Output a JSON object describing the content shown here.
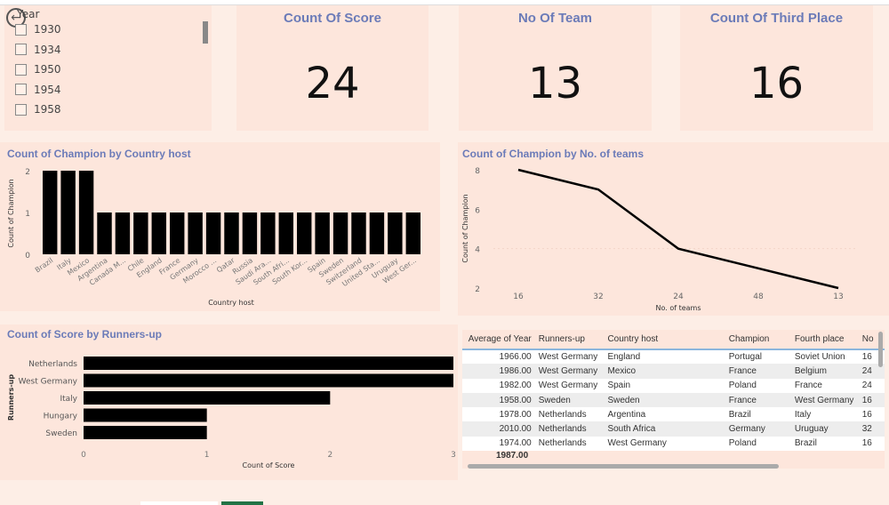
{
  "slicer": {
    "title": "Year",
    "items": [
      "1930",
      "1934",
      "1950",
      "1954",
      "1958"
    ]
  },
  "cards": [
    {
      "title": "Count Of Score",
      "value": "24"
    },
    {
      "title": "No Of Team",
      "value": "13"
    },
    {
      "title": "Count Of Third Place",
      "value": "16"
    }
  ],
  "chart_data": [
    {
      "type": "bar",
      "title": "Count of Champion by Country host",
      "xlabel": "Country host",
      "ylabel": "Count of Champion",
      "ylim": [
        0,
        2
      ],
      "yticks": [
        "0",
        "1",
        "2"
      ],
      "categories": [
        "Brazil",
        "Italy",
        "Mexico",
        "Argentina",
        "Canada M...",
        "Chile",
        "England",
        "France",
        "Germany",
        "Morocco ...",
        "Qatar",
        "Russia",
        "Saudi Ara...",
        "South Afri...",
        "South Kor...",
        "Spain",
        "Sweden",
        "Switzerland",
        "United Sta...",
        "Uruguay",
        "West Ger..."
      ],
      "values": [
        2,
        2,
        2,
        1,
        1,
        1,
        1,
        1,
        1,
        1,
        1,
        1,
        1,
        1,
        1,
        1,
        1,
        1,
        1,
        1,
        1
      ]
    },
    {
      "type": "line",
      "title": "Count of Champion by No. of teams",
      "xlabel": "No. of teams",
      "ylabel": "Count of Champion",
      "ylim": [
        2,
        8
      ],
      "yticks": [
        "2",
        "4",
        "6",
        "8"
      ],
      "categories": [
        "16",
        "32",
        "24",
        "48",
        "13"
      ],
      "values": [
        8,
        7,
        4,
        3,
        2
      ]
    },
    {
      "type": "bar",
      "orientation": "horizontal",
      "title": "Count of Score by Runners-up",
      "xlabel": "Count of Score",
      "ylabel": "Runners-up",
      "xlim": [
        0,
        3
      ],
      "xticks": [
        "0",
        "1",
        "2",
        "3"
      ],
      "categories": [
        "Netherlands",
        "West Germany",
        "Italy",
        "Hungary",
        "Sweden"
      ],
      "values": [
        3,
        3,
        2,
        1,
        1
      ]
    }
  ],
  "table": {
    "columns": [
      "Average of Year",
      "Runners-up",
      "Country host",
      "Champion",
      "Fourth place",
      "No"
    ],
    "rows": [
      [
        "1966.00",
        "West Germany",
        "England",
        "Portugal",
        "Soviet Union",
        "16"
      ],
      [
        "1986.00",
        "West Germany",
        "Mexico",
        "France",
        "Belgium",
        "24"
      ],
      [
        "1982.00",
        "West Germany",
        "Spain",
        "Poland",
        "France",
        "24"
      ],
      [
        "1958.00",
        "Sweden",
        "Sweden",
        "France",
        "West Germany",
        "16"
      ],
      [
        "1978.00",
        "Netherlands",
        "Argentina",
        "Brazil",
        "Italy",
        "16"
      ],
      [
        "2010.00",
        "Netherlands",
        "South Africa",
        "Germany",
        "Uruguay",
        "32"
      ],
      [
        "1974.00",
        "Netherlands",
        "West Germany",
        "Poland",
        "Brazil",
        "16"
      ]
    ],
    "total": "1987.00"
  },
  "colors": {
    "title": "#6b7bb8",
    "bar": "#000000",
    "panel": "#fde6dc",
    "accent_tab": "#217346"
  }
}
